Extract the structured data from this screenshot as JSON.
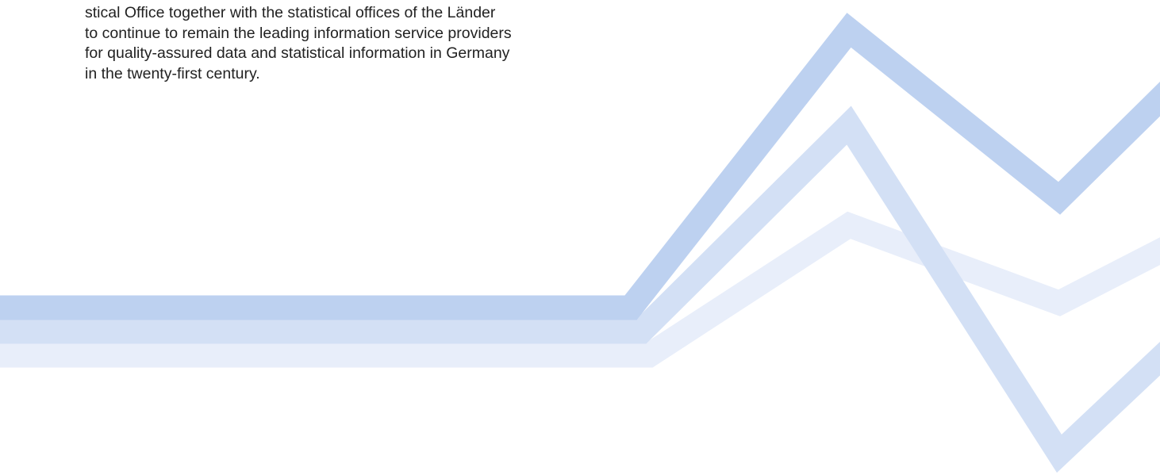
{
  "paragraph": {
    "lines": [
      "stical Office together with the statistical offices of the Länder",
      "to continue to remain the leading information service providers",
      "for quality-assured data and statistical information in Germany",
      "in the twenty-first century."
    ]
  }
}
